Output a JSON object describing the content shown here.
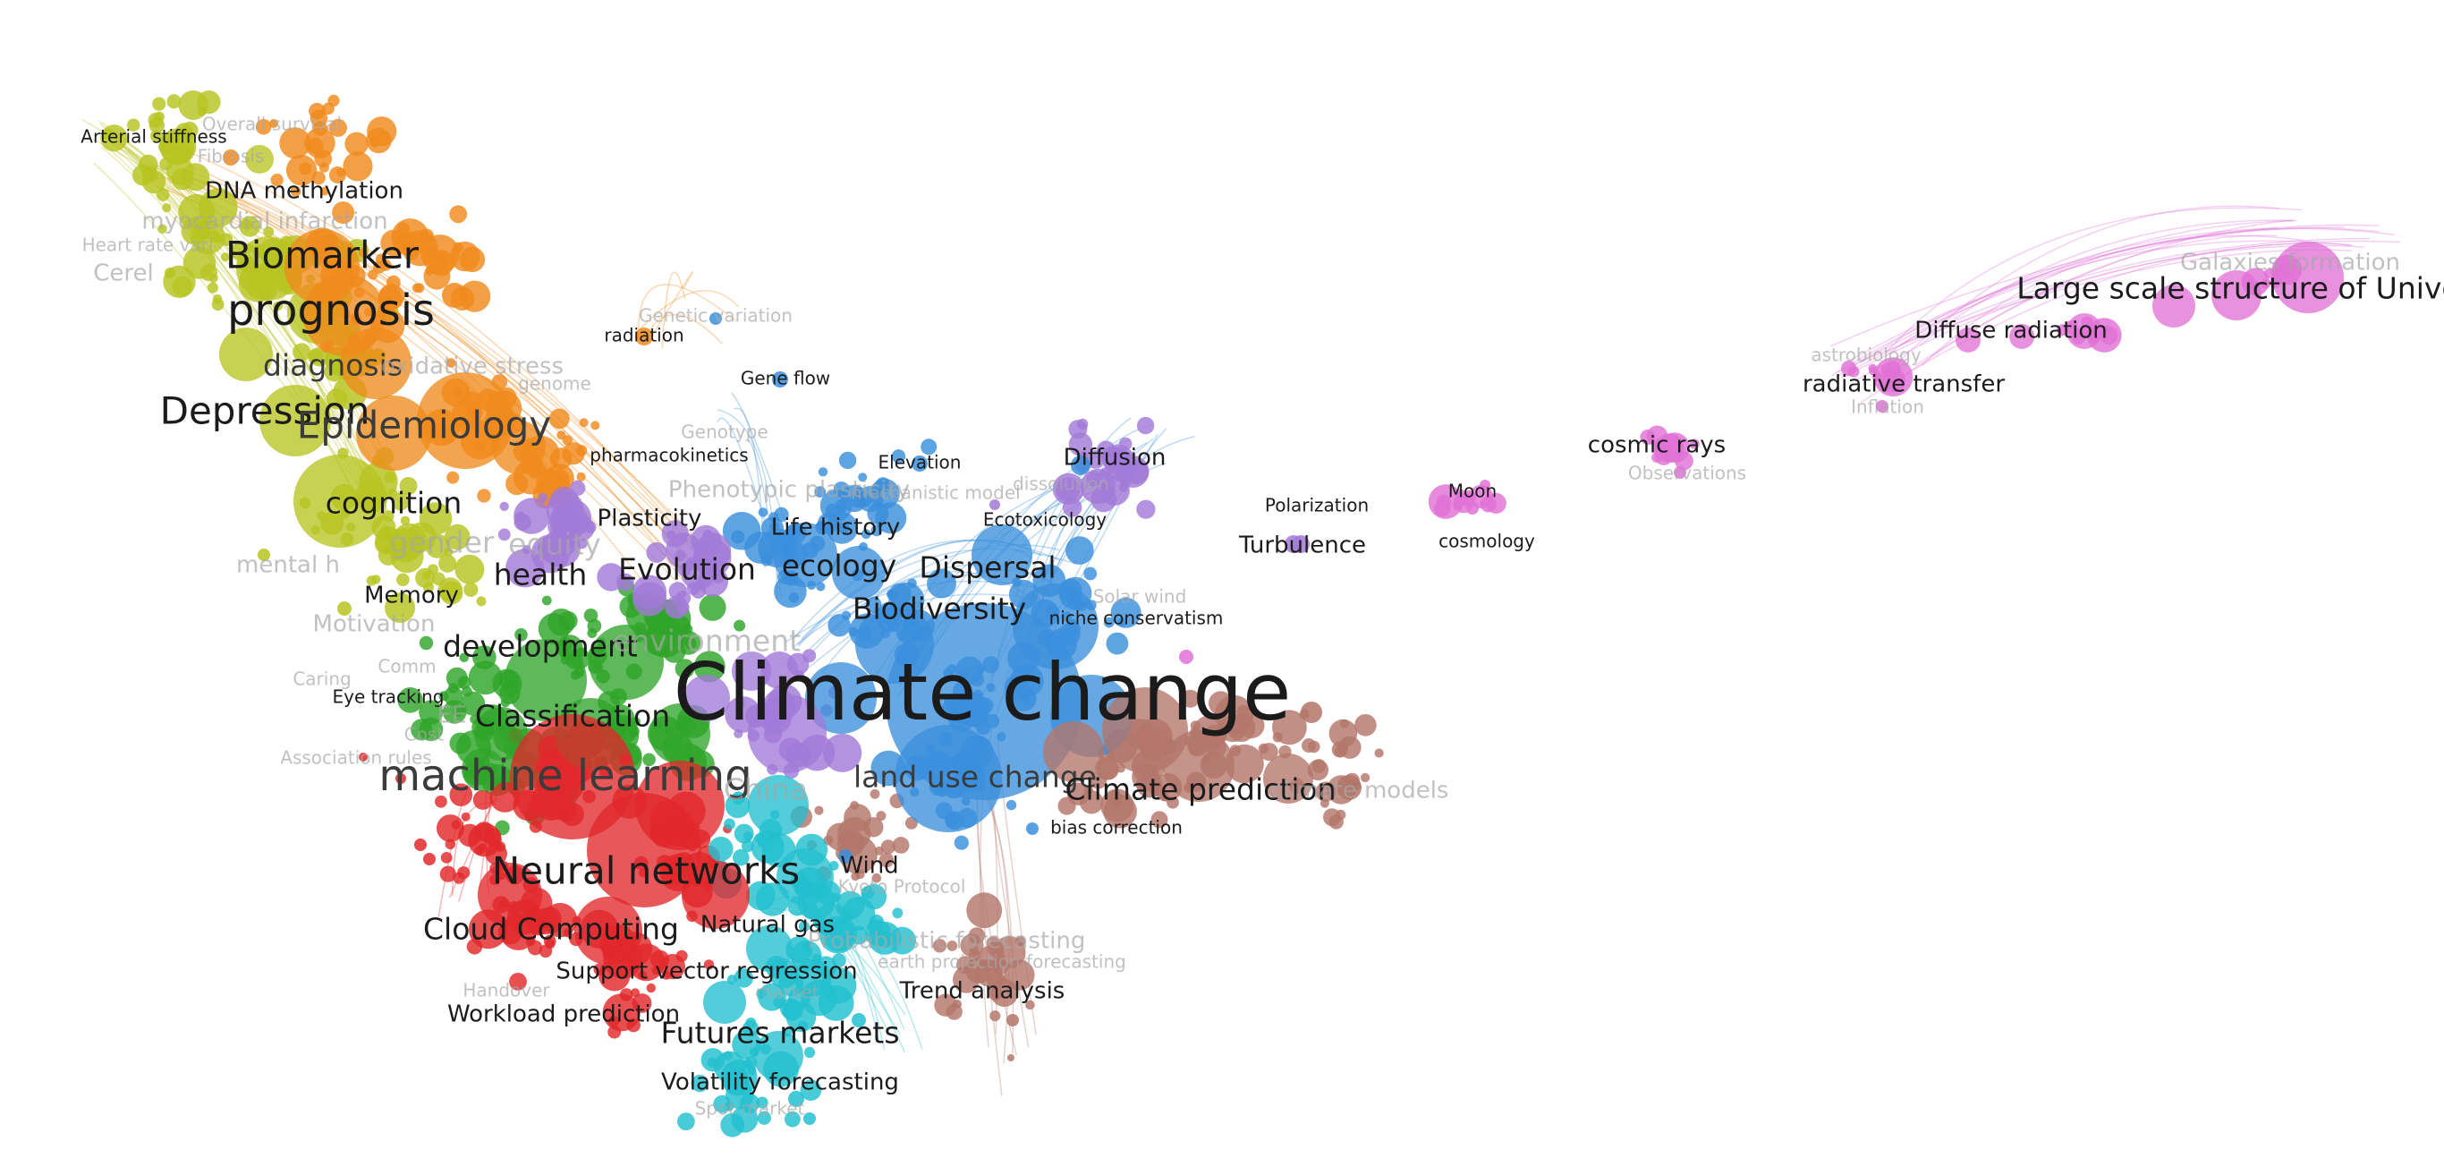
{
  "clusters": {
    "yellow": "#b7c421",
    "orange": "#f08a1c",
    "green": "#2fa52a",
    "red": "#e2282b",
    "blue": "#3b8fdc",
    "purple": "#a27ad8",
    "brown": "#b3766a",
    "cyan": "#22bfd0",
    "pink": "#e072d6"
  },
  "labels": [
    {
      "id": "arterial-stiffness",
      "text": "Arterial stiffness",
      "tone": "dark",
      "weight": 1
    },
    {
      "id": "overall-survival",
      "text": "Overall survival",
      "tone": "faint",
      "weight": 1
    },
    {
      "id": "fibrosis",
      "text": "Fibrosis",
      "tone": "faint",
      "weight": 1
    },
    {
      "id": "dna-methylation",
      "text": "DNA methylation",
      "tone": "dark",
      "weight": 2
    },
    {
      "id": "myocardial-infarction",
      "text": "myocardial infarction",
      "tone": "faint",
      "weight": 2
    },
    {
      "id": "heart-rate",
      "text": "Heart rate vari",
      "tone": "faint",
      "weight": 1
    },
    {
      "id": "cerebral",
      "text": "Cerel",
      "tone": "faint",
      "weight": 2
    },
    {
      "id": "biomarker",
      "text": "Biomarker",
      "tone": "dark",
      "weight": 4
    },
    {
      "id": "prognosis",
      "text": "prognosis",
      "tone": "dark",
      "weight": 5
    },
    {
      "id": "diagnosis",
      "text": "diagnosis",
      "tone": "mid",
      "weight": 3
    },
    {
      "id": "depression",
      "text": "Depression",
      "tone": "dark",
      "weight": 4
    },
    {
      "id": "oxidative-stress",
      "text": "oxidative stress",
      "tone": "faint",
      "weight": 2
    },
    {
      "id": "genome",
      "text": "genome",
      "tone": "faint",
      "weight": 1
    },
    {
      "id": "epidemiology",
      "text": "Epidemiology",
      "tone": "mid",
      "weight": 4
    },
    {
      "id": "genetic-variation",
      "text": "Genetic variation",
      "tone": "faint",
      "weight": 1
    },
    {
      "id": "radiation",
      "text": "radiation",
      "tone": "dark",
      "weight": 1
    },
    {
      "id": "gene-flow",
      "text": "Gene flow",
      "tone": "dark",
      "weight": 1
    },
    {
      "id": "genotype",
      "text": "Genotype",
      "tone": "faint",
      "weight": 1
    },
    {
      "id": "pharmacokinetics",
      "text": "pharmacokinetics",
      "tone": "dark",
      "weight": 1
    },
    {
      "id": "phenotypic-plasticity",
      "text": "Phenotypic plasticity",
      "tone": "faint",
      "weight": 2
    },
    {
      "id": "mechanistic-model",
      "text": "mechanistic model",
      "tone": "faint",
      "weight": 1
    },
    {
      "id": "plasticity",
      "text": "Plasticity",
      "tone": "dark",
      "weight": 2
    },
    {
      "id": "cognition",
      "text": "cognition",
      "tone": "dark",
      "weight": 3
    },
    {
      "id": "gender",
      "text": "gender",
      "tone": "faint",
      "weight": 3
    },
    {
      "id": "equity",
      "text": "equity",
      "tone": "faint",
      "weight": 3
    },
    {
      "id": "mental-health",
      "text": "mental h",
      "tone": "faint",
      "weight": 2
    },
    {
      "id": "health",
      "text": "health",
      "tone": "dark",
      "weight": 3
    },
    {
      "id": "evolution",
      "text": "Evolution",
      "tone": "dark",
      "weight": 3
    },
    {
      "id": "life-history",
      "text": "Life history",
      "tone": "dark",
      "weight": 2
    },
    {
      "id": "ecology",
      "text": "ecology",
      "tone": "dark",
      "weight": 3
    },
    {
      "id": "memory",
      "text": "Memory",
      "tone": "dark",
      "weight": 2
    },
    {
      "id": "motivation",
      "text": "Motivation",
      "tone": "faint",
      "weight": 2
    },
    {
      "id": "development",
      "text": "development",
      "tone": "dark",
      "weight": 3
    },
    {
      "id": "environment",
      "text": "environment",
      "tone": "faint",
      "weight": 3
    },
    {
      "id": "elevation",
      "text": "Elevation",
      "tone": "dark",
      "weight": 1
    },
    {
      "id": "diffusion",
      "text": "Diffusion",
      "tone": "dark",
      "weight": 2
    },
    {
      "id": "dissolution",
      "text": "dissolution",
      "tone": "faint",
      "weight": 1
    },
    {
      "id": "ecotoxicology",
      "text": "Ecotoxicology",
      "tone": "dark",
      "weight": 1
    },
    {
      "id": "dispersal",
      "text": "Dispersal",
      "tone": "dark",
      "weight": 3
    },
    {
      "id": "biodiversity",
      "text": "Biodiversity",
      "tone": "dark",
      "weight": 3
    },
    {
      "id": "solar-wind",
      "text": "Solar wind",
      "tone": "faint",
      "weight": 1
    },
    {
      "id": "niche-conservatism",
      "text": "niche conservatism",
      "tone": "dark",
      "weight": 1
    },
    {
      "id": "climate-change",
      "text": "Climate change",
      "tone": "dark",
      "weight": 8
    },
    {
      "id": "comm",
      "text": "Comm",
      "tone": "faint",
      "weight": 1
    },
    {
      "id": "caring",
      "text": "Caring",
      "tone": "faint",
      "weight": 1
    },
    {
      "id": "eye-tracking",
      "text": "Eye tracking",
      "tone": "dark",
      "weight": 1
    },
    {
      "id": "eeg",
      "text": "EE",
      "tone": "faint",
      "weight": 2
    },
    {
      "id": "classification",
      "text": "Classification",
      "tone": "dark",
      "weight": 3
    },
    {
      "id": "cost",
      "text": "Cost",
      "tone": "faint",
      "weight": 1
    },
    {
      "id": "association-rules",
      "text": "Association rules",
      "tone": "faint",
      "weight": 1
    },
    {
      "id": "machine-learning",
      "text": "machine learning",
      "tone": "mid",
      "weight": 5
    },
    {
      "id": "china",
      "text": "China",
      "tone": "faint",
      "weight": 3
    },
    {
      "id": "land-use-change",
      "text": "land use change",
      "tone": "mid",
      "weight": 3
    },
    {
      "id": "climate-prediction",
      "text": "Climate prediction",
      "tone": "dark",
      "weight": 3
    },
    {
      "id": "climate-models",
      "text": "climate models",
      "tone": "faint",
      "weight": 2
    },
    {
      "id": "bias-correction",
      "text": "bias correction",
      "tone": "dark",
      "weight": 1
    },
    {
      "id": "neural-networks",
      "text": "Neural networks",
      "tone": "dark",
      "weight": 4
    },
    {
      "id": "wind",
      "text": "Wind",
      "tone": "dark",
      "weight": 2
    },
    {
      "id": "kyoto-protocol",
      "text": "Kyoto Protocol",
      "tone": "faint",
      "weight": 1
    },
    {
      "id": "cloud-computing",
      "text": "Cloud Computing",
      "tone": "dark",
      "weight": 3
    },
    {
      "id": "natural-gas",
      "text": "Natural gas",
      "tone": "dark",
      "weight": 2
    },
    {
      "id": "probabilistic-forecasting",
      "text": "Probabilistic forecasting",
      "tone": "faint",
      "weight": 2
    },
    {
      "id": "earth-projection-forecasting",
      "text": "earth projection forecasting",
      "tone": "faint",
      "weight": 1
    },
    {
      "id": "support-vector-regression",
      "text": "Support vector regression",
      "tone": "dark",
      "weight": 2
    },
    {
      "id": "hand-over",
      "text": "Handover",
      "tone": "faint",
      "weight": 1
    },
    {
      "id": "market",
      "text": "market",
      "tone": "faint",
      "weight": 1
    },
    {
      "id": "trend-analysis",
      "text": "Trend analysis",
      "tone": "dark",
      "weight": 2
    },
    {
      "id": "workload-prediction",
      "text": "Workload prediction",
      "tone": "dark",
      "weight": 2
    },
    {
      "id": "futures-markets",
      "text": "Futures markets",
      "tone": "dark",
      "weight": 3
    },
    {
      "id": "volatility-forecasting",
      "text": "Volatility forecasting",
      "tone": "dark",
      "weight": 2
    },
    {
      "id": "spot-market",
      "text": "Spot market",
      "tone": "faint",
      "weight": 1
    },
    {
      "id": "polarization",
      "text": "Polarization",
      "tone": "dark",
      "weight": 1
    },
    {
      "id": "moon",
      "text": "Moon",
      "tone": "dark",
      "weight": 1
    },
    {
      "id": "turbulence",
      "text": "Turbulence",
      "tone": "dark",
      "weight": 2
    },
    {
      "id": "cosmology",
      "text": "cosmology",
      "tone": "dark",
      "weight": 1
    },
    {
      "id": "cosmic-rays",
      "text": "cosmic rays",
      "tone": "dark",
      "weight": 2
    },
    {
      "id": "observations",
      "text": "Observations",
      "tone": "faint",
      "weight": 1
    },
    {
      "id": "astrobiology",
      "text": "astrobiology",
      "tone": "faint",
      "weight": 1
    },
    {
      "id": "radiative-transfer",
      "text": "radiative transfer",
      "tone": "dark",
      "weight": 2
    },
    {
      "id": "inflation",
      "text": "Inflation",
      "tone": "faint",
      "weight": 1
    },
    {
      "id": "diffuse-radiation",
      "text": "Diffuse radiation",
      "tone": "dark",
      "weight": 2
    },
    {
      "id": "large-scale-structure",
      "text": "Large scale structure of Unive",
      "tone": "dark",
      "weight": 3
    },
    {
      "id": "galaxies-formation",
      "text": "Galaxies formation",
      "tone": "faint",
      "weight": 2
    }
  ]
}
